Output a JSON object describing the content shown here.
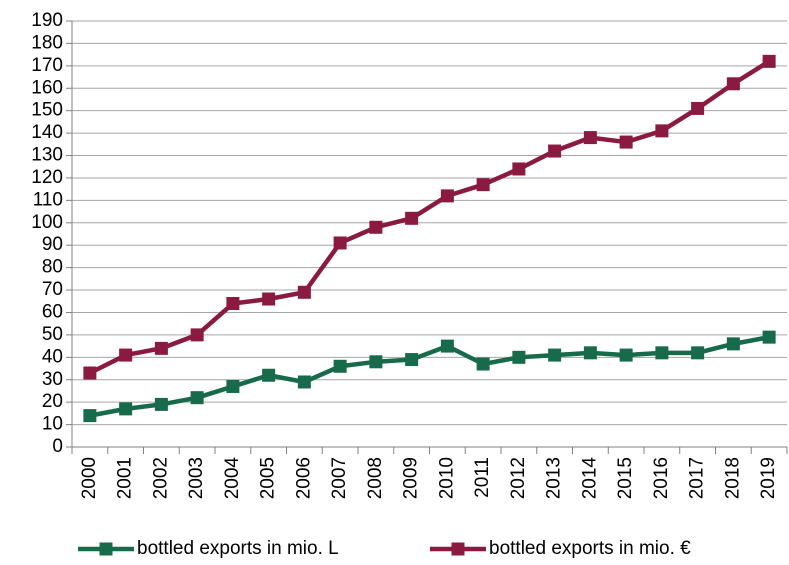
{
  "chart_data": {
    "type": "line",
    "categories": [
      "2000",
      "2001",
      "2002",
      "2003",
      "2004",
      "2005",
      "2006",
      "2007",
      "2008",
      "2009",
      "2010",
      "2011",
      "2012",
      "2013",
      "2014",
      "2015",
      "2016",
      "2017",
      "2018",
      "2019"
    ],
    "series": [
      {
        "name": "bottled exports in mio. L",
        "color": "#176b4b",
        "values": [
          14,
          17,
          19,
          22,
          27,
          32,
          29,
          36,
          38,
          39,
          45,
          37,
          40,
          41,
          42,
          41,
          42,
          42,
          46,
          49
        ]
      },
      {
        "name": "bottled exports in mio. €",
        "color": "#8a1a40",
        "values": [
          33,
          41,
          44,
          50,
          64,
          66,
          69,
          91,
          98,
          102,
          112,
          117,
          124,
          132,
          138,
          136,
          141,
          151,
          162,
          172
        ]
      }
    ],
    "ylim": [
      0,
      190
    ],
    "yticks": [
      0,
      10,
      20,
      30,
      40,
      50,
      60,
      70,
      80,
      90,
      100,
      110,
      120,
      130,
      140,
      150,
      160,
      170,
      180,
      190
    ],
    "grid": true,
    "legend": "bottom"
  }
}
